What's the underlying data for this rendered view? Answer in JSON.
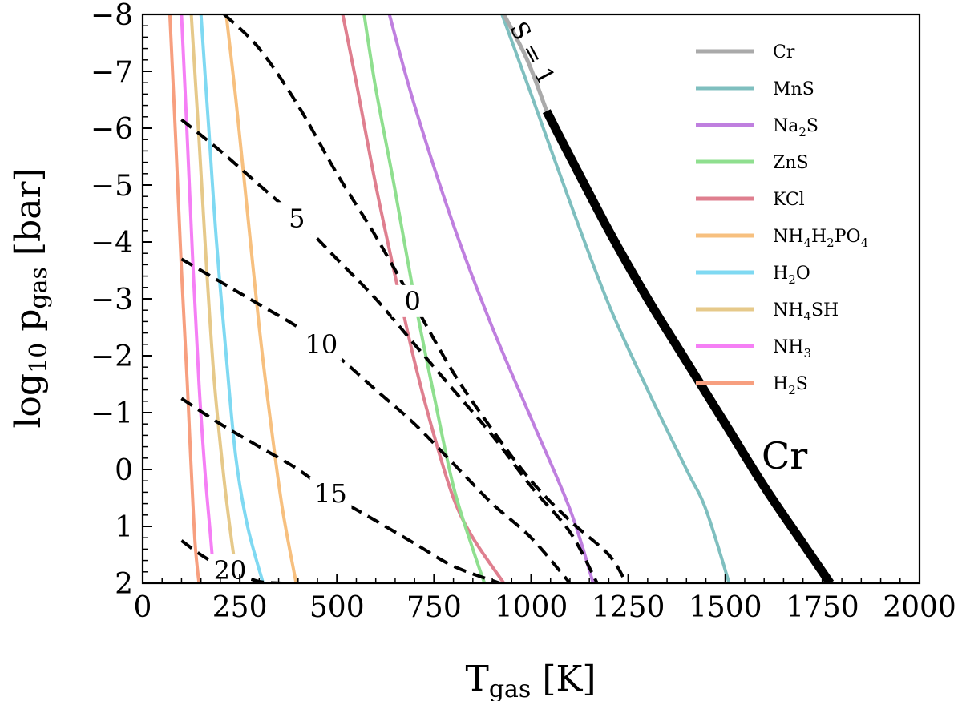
{
  "chart_data": {
    "type": "line",
    "x_range": [
      0,
      2000
    ],
    "y_range": [
      -8,
      2
    ],
    "y_inverted": true,
    "x_ticks": [
      "0",
      "250",
      "500",
      "750",
      "1000",
      "1250",
      "1500",
      "1750",
      "2000"
    ],
    "y_ticks": [
      "−8",
      "−7",
      "−6",
      "−5",
      "−4",
      "−3",
      "−2",
      "−1",
      "0",
      "1",
      "2"
    ],
    "xlabel": {
      "main": "T",
      "sub": "gas",
      "unit": " [K]"
    },
    "ylabel": {
      "main": "log",
      "sub1": "10",
      "mid": " p",
      "sub2": "gas",
      "unit": " [bar]"
    },
    "corner_label": "Cr",
    "s_line_label": "S = 1",
    "series": [
      {
        "name": "Cr",
        "legend": [
          "Cr"
        ],
        "color": "#aaaaaa",
        "points": [
          [
            1040,
            -6.3
          ],
          [
            1100,
            -5.5
          ],
          [
            1200,
            -4.2
          ],
          [
            1300,
            -3.0
          ],
          [
            1400,
            -1.9
          ],
          [
            1500,
            -0.8
          ],
          [
            1600,
            0.3
          ],
          [
            1700,
            1.3
          ],
          [
            1770,
            2.0
          ]
        ]
      },
      {
        "name": "MnS",
        "legend": [
          "MnS"
        ],
        "color": "#7fbfbf",
        "points": [
          [
            925,
            -8.0
          ],
          [
            1000,
            -6.6
          ],
          [
            1100,
            -4.7
          ],
          [
            1200,
            -2.9
          ],
          [
            1300,
            -1.4
          ],
          [
            1400,
            0.0
          ],
          [
            1450,
            0.7
          ],
          [
            1510,
            2.0
          ]
        ]
      },
      {
        "name": "Na2S",
        "legend": [
          "Na",
          "2",
          "S"
        ],
        "color": "#bf7fdf",
        "points": [
          [
            635,
            -8.0
          ],
          [
            700,
            -6.4
          ],
          [
            800,
            -4.3
          ],
          [
            900,
            -2.5
          ],
          [
            1000,
            -0.9
          ],
          [
            1100,
            0.7
          ],
          [
            1160,
            2.0
          ]
        ]
      },
      {
        "name": "ZnS",
        "legend": [
          "ZnS"
        ],
        "color": "#8fdf8f",
        "points": [
          [
            570,
            -8.0
          ],
          [
            600,
            -6.7
          ],
          [
            650,
            -4.9
          ],
          [
            700,
            -3.0
          ],
          [
            750,
            -1.3
          ],
          [
            800,
            0.3
          ],
          [
            850,
            1.4
          ],
          [
            880,
            2.0
          ]
        ]
      },
      {
        "name": "KCl",
        "legend": [
          "KCl"
        ],
        "color": "#df7f8f",
        "points": [
          [
            515,
            -8.0
          ],
          [
            550,
            -6.8
          ],
          [
            600,
            -5.0
          ],
          [
            650,
            -3.4
          ],
          [
            700,
            -1.9
          ],
          [
            750,
            -0.6
          ],
          [
            800,
            0.5
          ],
          [
            850,
            1.2
          ],
          [
            930,
            2.0
          ]
        ]
      },
      {
        "name": "NH4H2PO4",
        "legend": [
          "NH",
          "4",
          "H",
          "2",
          "PO",
          "4"
        ],
        "color": "#f7c07f",
        "points": [
          [
            215,
            -8.0
          ],
          [
            240,
            -6.5
          ],
          [
            270,
            -4.5
          ],
          [
            300,
            -2.5
          ],
          [
            330,
            -0.8
          ],
          [
            360,
            0.7
          ],
          [
            395,
            2.0
          ]
        ]
      },
      {
        "name": "H2O",
        "legend": [
          "H",
          "2",
          "O"
        ],
        "color": "#7fd9f2",
        "points": [
          [
            150,
            -8.0
          ],
          [
            170,
            -6.0
          ],
          [
            190,
            -4.0
          ],
          [
            215,
            -2.0
          ],
          [
            240,
            -0.2
          ],
          [
            270,
            1.0
          ],
          [
            310,
            2.0
          ]
        ]
      },
      {
        "name": "NH4SH",
        "legend": [
          "NH",
          "4",
          "SH"
        ],
        "color": "#e6c98a",
        "points": [
          [
            125,
            -8.0
          ],
          [
            145,
            -5.8
          ],
          [
            165,
            -3.5
          ],
          [
            185,
            -1.5
          ],
          [
            210,
            0.2
          ],
          [
            230,
            1.3
          ],
          [
            245,
            2.0
          ]
        ]
      },
      {
        "name": "NH3",
        "legend": [
          "NH",
          "3"
        ],
        "color": "#f57ff5",
        "points": [
          [
            100,
            -8.0
          ],
          [
            115,
            -5.8
          ],
          [
            130,
            -3.5
          ],
          [
            145,
            -1.5
          ],
          [
            160,
            0.0
          ],
          [
            175,
            1.2
          ],
          [
            185,
            2.0
          ]
        ]
      },
      {
        "name": "H2S",
        "legend": [
          "H",
          "2",
          "S"
        ],
        "color": "#f79f7f",
        "points": [
          [
            70,
            -8.0
          ],
          [
            85,
            -5.8
          ],
          [
            100,
            -3.5
          ],
          [
            115,
            -1.5
          ],
          [
            125,
            0.0
          ],
          [
            135,
            1.3
          ],
          [
            145,
            2.0
          ]
        ]
      }
    ],
    "cr_solid_segment": [
      [
        1040,
        -6.3
      ],
      [
        1100,
        -5.5
      ],
      [
        1200,
        -4.2
      ],
      [
        1300,
        -3.0
      ],
      [
        1400,
        -1.9
      ],
      [
        1500,
        -0.8
      ],
      [
        1600,
        0.3
      ],
      [
        1700,
        1.3
      ],
      [
        1770,
        2.0
      ]
    ],
    "cr_s1_segment": [
      [
        930,
        -8.0
      ],
      [
        990,
        -7.2
      ],
      [
        1040,
        -6.3
      ]
    ],
    "contours": [
      {
        "label": "0",
        "points": [
          [
            210,
            -8.0
          ],
          [
            300,
            -7.4
          ],
          [
            400,
            -6.4
          ],
          [
            500,
            -5.2
          ],
          [
            600,
            -4.1
          ],
          [
            700,
            -2.9
          ],
          [
            800,
            -1.7
          ],
          [
            900,
            -0.7
          ],
          [
            1000,
            0.2
          ],
          [
            1100,
            0.9
          ],
          [
            1200,
            1.5
          ],
          [
            1245,
            2.0
          ]
        ]
      },
      {
        "label": "5",
        "points": [
          [
            100,
            -6.15
          ],
          [
            200,
            -5.6
          ],
          [
            300,
            -5.0
          ],
          [
            400,
            -4.4
          ],
          [
            500,
            -3.7
          ],
          [
            600,
            -3.0
          ],
          [
            700,
            -2.2
          ],
          [
            800,
            -1.4
          ],
          [
            900,
            -0.6
          ],
          [
            1000,
            0.3
          ],
          [
            1100,
            1.1
          ],
          [
            1170,
            2.0
          ]
        ]
      },
      {
        "label": "10",
        "points": [
          [
            100,
            -3.7
          ],
          [
            200,
            -3.3
          ],
          [
            300,
            -2.9
          ],
          [
            400,
            -2.5
          ],
          [
            500,
            -2.0
          ],
          [
            600,
            -1.4
          ],
          [
            700,
            -0.8
          ],
          [
            800,
            -0.1
          ],
          [
            900,
            0.6
          ],
          [
            1000,
            1.2
          ],
          [
            1100,
            2.0
          ]
        ]
      },
      {
        "label": "15",
        "points": [
          [
            100,
            -1.25
          ],
          [
            200,
            -0.8
          ],
          [
            300,
            -0.4
          ],
          [
            400,
            0.0
          ],
          [
            500,
            0.5
          ],
          [
            600,
            0.9
          ],
          [
            700,
            1.3
          ],
          [
            800,
            1.7
          ],
          [
            920,
            2.0
          ]
        ]
      },
      {
        "label": "20",
        "points": [
          [
            100,
            1.25
          ],
          [
            150,
            1.5
          ],
          [
            200,
            1.7
          ],
          [
            250,
            1.85
          ],
          [
            300,
            1.97
          ],
          [
            360,
            2.0
          ]
        ]
      }
    ]
  }
}
